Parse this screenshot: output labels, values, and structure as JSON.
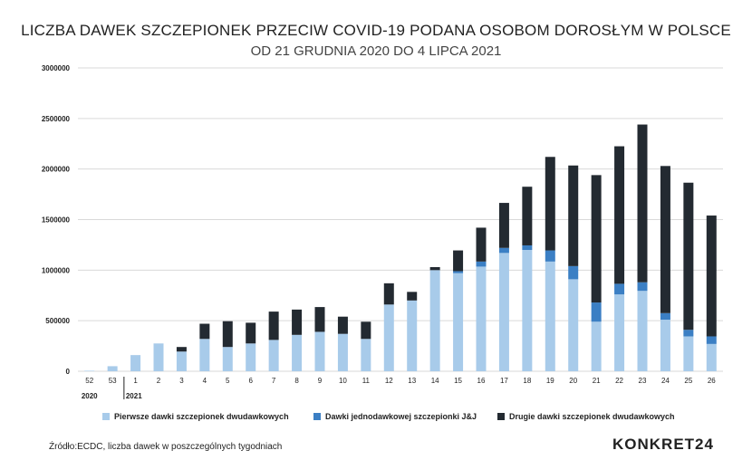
{
  "colors": {
    "first": "#a8cbea",
    "single": "#3b7fc4",
    "second": "#232a31",
    "grid": "#d9d9d9"
  },
  "chart_data": {
    "type": "bar",
    "stacked": true,
    "title": "LICZBA DAWEK SZCZEPIONEK PRZECIW COVID-19 PODANA OSOBOM DOROSŁYM W POLSCE",
    "subtitle": "OD 21 GRUDNIA 2020 DO 4 LIPCA 2021",
    "xlabel": "",
    "ylabel": "",
    "ylim": [
      0,
      3000000
    ],
    "yticks": [
      "0",
      "500000",
      "1000000",
      "1500000",
      "2000000",
      "2500000",
      "3000000"
    ],
    "grid": true,
    "legend_position": "bottom",
    "categories": [
      "52",
      "53",
      "1",
      "2",
      "3",
      "4",
      "5",
      "6",
      "7",
      "8",
      "9",
      "10",
      "11",
      "12",
      "13",
      "14",
      "15",
      "16",
      "17",
      "18",
      "19",
      "20",
      "21",
      "22",
      "23",
      "24",
      "25",
      "26"
    ],
    "year_labels": [
      {
        "label": "2020",
        "at_category": "52"
      },
      {
        "label": "2021",
        "at_category": "1"
      }
    ],
    "series": [
      {
        "name": "Pierwsze dawki szczepionek dwudawkowych",
        "color": "#a8cbea",
        "values": [
          5000,
          50000,
          160000,
          275000,
          195000,
          320000,
          240000,
          275000,
          310000,
          360000,
          390000,
          370000,
          320000,
          660000,
          700000,
          1000000,
          970000,
          1035000,
          1170000,
          1200000,
          1085000,
          910000,
          490000,
          760000,
          795000,
          510000,
          345000,
          270000
        ]
      },
      {
        "name": "Dawki jednodawkowej szczepionki J&J",
        "color": "#3b7fc4",
        "values": [
          0,
          0,
          0,
          0,
          0,
          0,
          0,
          0,
          0,
          0,
          0,
          0,
          0,
          0,
          0,
          0,
          20000,
          50000,
          50000,
          45000,
          110000,
          130000,
          190000,
          105000,
          85000,
          65000,
          65000,
          75000
        ]
      },
      {
        "name": "Drugie dawki szczepionek dwudawkowych",
        "color": "#232a31",
        "values": [
          0,
          0,
          0,
          0,
          45000,
          150000,
          255000,
          205000,
          280000,
          250000,
          245000,
          170000,
          170000,
          210000,
          85000,
          30000,
          205000,
          335000,
          445000,
          580000,
          925000,
          995000,
          1260000,
          1360000,
          1560000,
          1455000,
          1455000,
          1195000
        ]
      }
    ]
  },
  "legend": {
    "items": [
      {
        "label": "Pierwsze dawki szczepionek dwudawkowych",
        "color": "#a8cbea"
      },
      {
        "label": "Dawki jednodawkowej szczepionki J&J",
        "color": "#3b7fc4"
      },
      {
        "label": "Drugie dawki szczepionek dwudawkowych",
        "color": "#232a31"
      }
    ]
  },
  "footer": {
    "source": "Źródło:ECDC, liczba dawek w poszczególnych tygodniach",
    "logo": "KONKRET24"
  }
}
